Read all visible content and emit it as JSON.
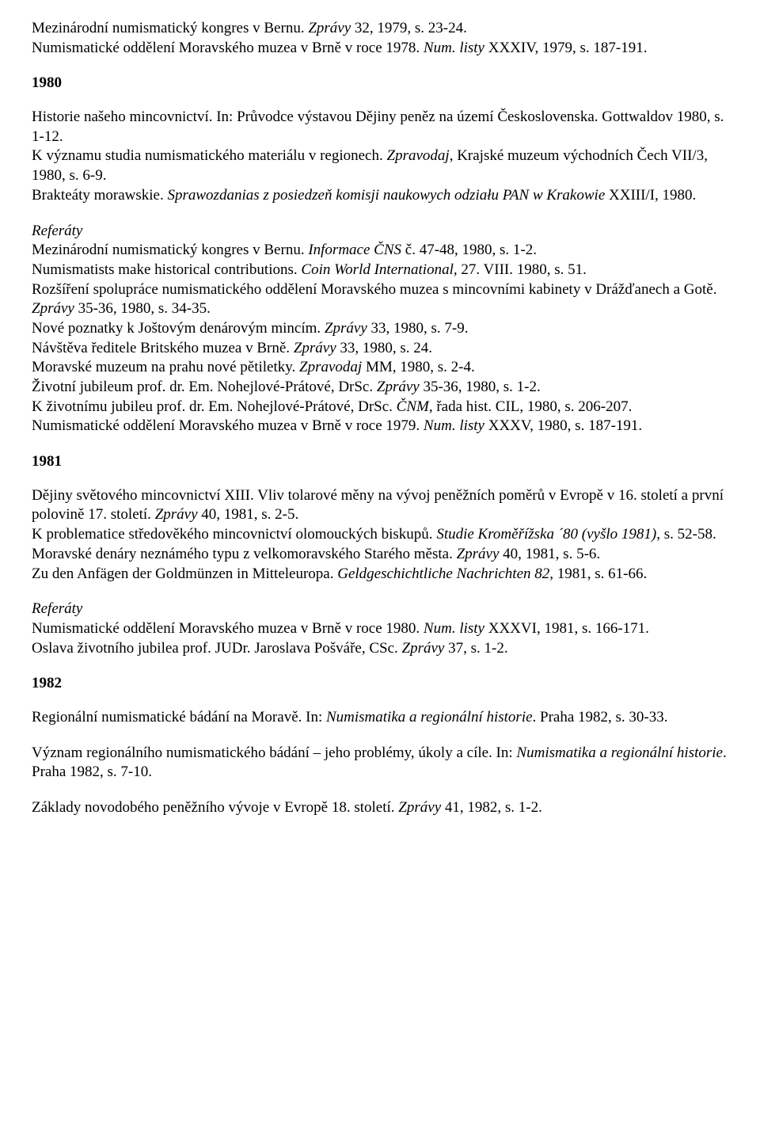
{
  "intro_lines": [
    "Mezinárodní numismatický kongres v Bernu. <i>Zprávy</i> 32, 1979, s. 23-24.",
    "Numismatické oddělení Moravského muzea v Brně v roce 1978. <i>Num. listy</i> XXXIV, 1979, s. 187-191."
  ],
  "sections": [
    {
      "year": "1980",
      "main_block": [
        "Historie našeho mincovnictví. In: Průvodce výstavou Dějiny peněz na území Československa. Gottwaldov 1980, s. 1-12.",
        "K významu studia numismatického materiálu v regionech. <i>Zpravodaj</i>, Krajské muzeum východních Čech VII/3, 1980, s. 6-9.",
        "Brakteáty morawskie. <i>Sprawozdanias z posiedzeň komisji naukowych odziału PAN w Krakowie</i> XXIII/I, 1980."
      ],
      "referaty_heading": "Referáty",
      "referaty_block": [
        "Mezinárodní numismatický kongres v Bernu. <i>Informace ČNS</i> č. 47-48, 1980, s. 1-2.",
        "Numismatists make historical contributions. <i>Coin World International</i>, 27. VIII. 1980, s. 51.",
        "Rozšíření spolupráce numismatického oddělení Moravského muzea s mincovními kabinety v Drážďanech a Gotě. <i>Zprávy</i> 35-36, 1980, s. 34-35.",
        "Nové poznatky k Joštovým denárovým mincím. <i>Zprávy</i> 33, 1980, s. 7-9.",
        "Návštěva ředitele Britského muzea v Brně. <i>Zprávy</i> 33, 1980, s. 24.",
        "Moravské muzeum na prahu nové pětiletky. <i>Zpravodaj</i> MM, 1980, s. 2-4.",
        "Životní jubileum prof. dr. Em. Nohejlové-Prátové, DrSc. <i>Zprávy</i> 35-36, 1980, s. 1-2.",
        "K životnímu jubileu prof. dr. Em. Nohejlové-Prátové, DrSc. <i>ČNM</i>, řada hist. CIL, 1980, s. 206-207.",
        "Numismatické oddělení Moravského muzea v Brně v roce 1979. <i>Num. listy</i> XXXV, 1980, s. 187-191."
      ]
    },
    {
      "year": "1981",
      "main_block": [
        " Dějiny světového mincovnictví XIII. Vliv tolarové měny na vývoj peněžních poměrů v Evropě v 16. století a první polovině 17. století. <i>Zprávy</i> 40, 1981, s. 2-5.",
        "K problematice středověkého mincovnictví olomouckých biskupů. <i>Studie Kroměřížska ´80 (vyšlo 1981)</i>, s. 52-58.",
        "Moravské denáry neznámého typu z velkomoravského Starého města. <i>Zprávy</i> 40, 1981, s. 5-6.",
        "Zu den Anfägen der Goldmünzen in Mitteleuropa. <i>Geldgeschichtliche Nachrichten 82</i>, 1981, s. 61-66."
      ],
      "referaty_heading": "Referáty",
      "referaty_block": [
        "Numismatické oddělení Moravského muzea v Brně v roce 1980. <i>Num. listy</i> XXXVI, 1981, s. 166-171.",
        "Oslava životního jubilea prof. JUDr. Jaroslava Pošváře, CSc. <i>Zprávy</i> 37, s. 1-2."
      ]
    },
    {
      "year": "1982",
      "singles": [
        "Regionální numismatické bádání na Moravě. In: <i>Numismatika a regionální historie</i>. Praha 1982, s. 30-33.",
        "Význam regionálního numismatického bádání – jeho problémy, úkoly a cíle. In: <i>Numismatika a regionální historie</i>. Praha 1982, s. 7-10.",
        "Základy novodobého peněžního vývoje v Evropě 18. století. <i>Zprávy</i> 41, 1982, s. 1-2."
      ]
    }
  ]
}
